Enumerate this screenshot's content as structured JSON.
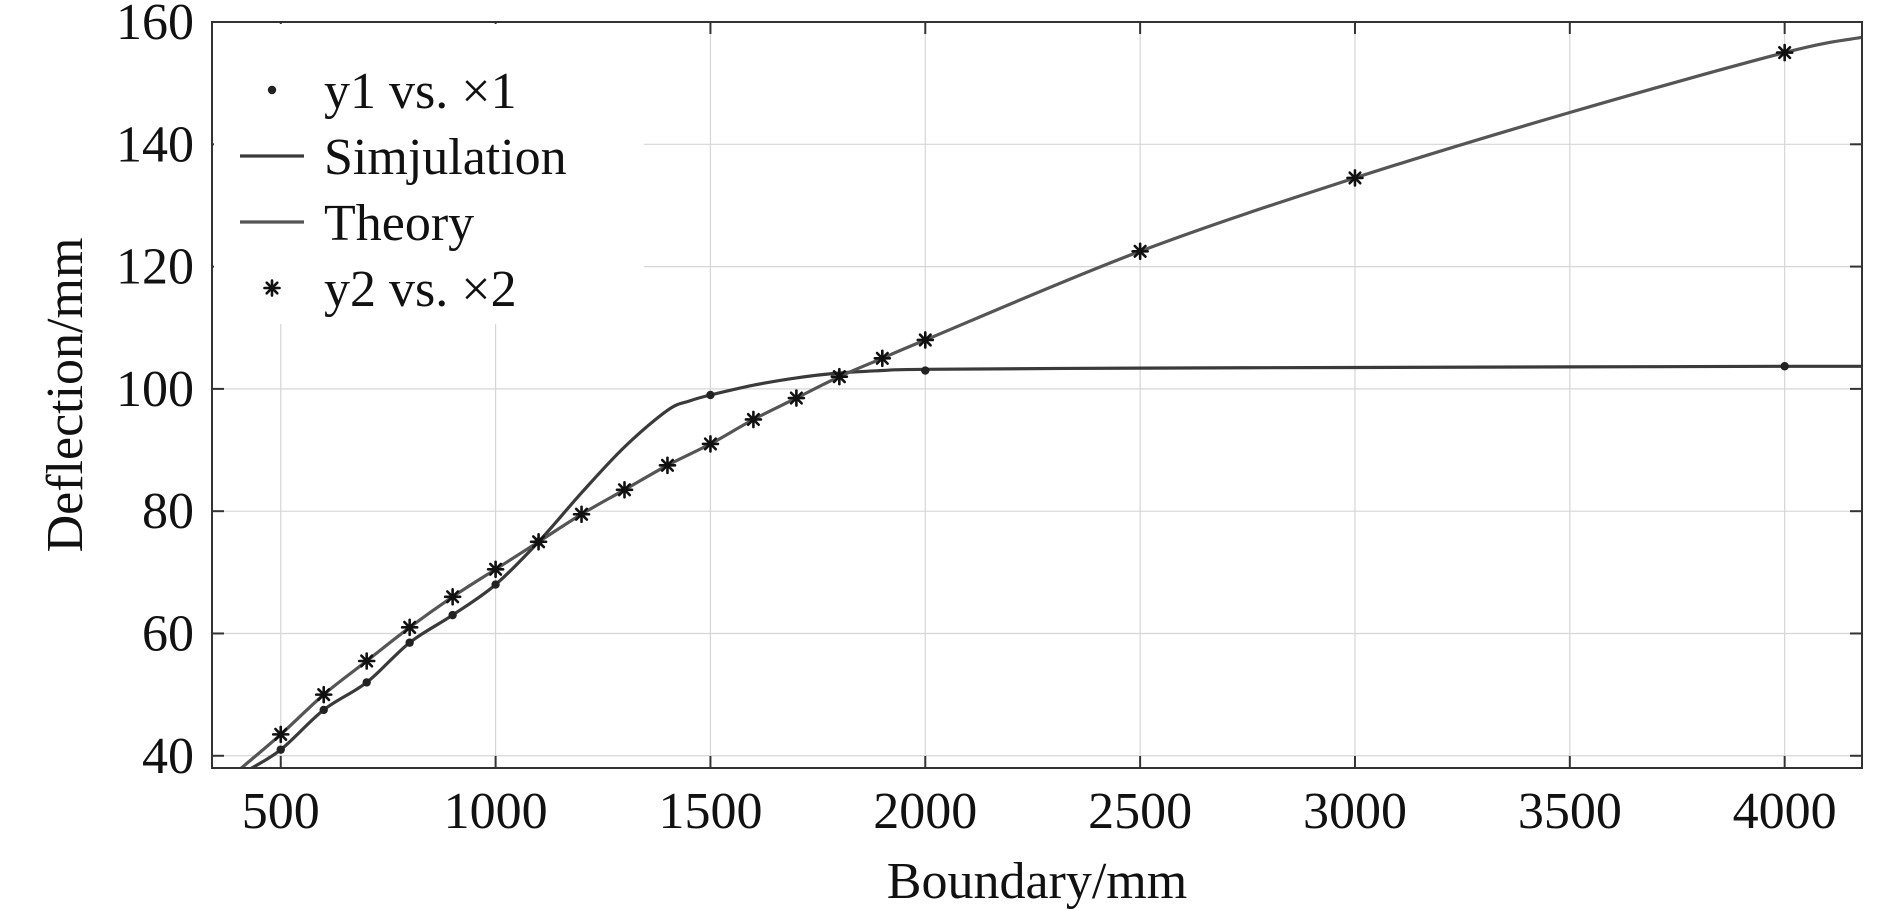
{
  "chart_data": {
    "type": "line",
    "title": "",
    "xlabel": "Boundary/mm",
    "ylabel": "Deflection/mm",
    "xlim": [
      340,
      4180
    ],
    "ylim": [
      38,
      160
    ],
    "xticks": [
      500,
      1000,
      1500,
      2000,
      2500,
      3000,
      3500,
      4000
    ],
    "yticks": [
      40,
      60,
      80,
      100,
      120,
      140,
      160
    ],
    "grid": true,
    "legend_position": "top-left",
    "series": [
      {
        "name": "y1 vs. ×1",
        "kind": "dot-markers",
        "x": [
          500,
          600,
          700,
          800,
          900,
          1000,
          1100,
          1500,
          2000,
          4000
        ],
        "y": [
          41,
          47.5,
          52,
          58.5,
          63,
          68,
          75,
          99,
          103,
          103.7
        ]
      },
      {
        "name": "Simjulation",
        "kind": "line",
        "x": [
          420,
          500,
          600,
          700,
          800,
          900,
          1000,
          1100,
          1200,
          1300,
          1400,
          1450,
          1500,
          1600,
          1700,
          1800,
          1900,
          2000,
          2500,
          3000,
          3500,
          4000,
          4180
        ],
        "y": [
          37.5,
          41,
          47.5,
          52,
          58.5,
          63,
          68,
          75,
          83,
          90.5,
          96.5,
          98,
          99,
          100.6,
          101.8,
          102.6,
          103,
          103.2,
          103.4,
          103.5,
          103.6,
          103.7,
          103.7
        ]
      },
      {
        "name": "Theory",
        "kind": "line",
        "x": [
          400,
          500,
          600,
          700,
          800,
          900,
          1000,
          1100,
          1200,
          1300,
          1400,
          1500,
          1600,
          1700,
          1800,
          1900,
          2000,
          2500,
          3000,
          3500,
          4000,
          4180
        ],
        "y": [
          37.5,
          43.5,
          50,
          55.5,
          61,
          66,
          70.5,
          75,
          79.5,
          83.5,
          87.5,
          91,
          95,
          98.5,
          102,
          105,
          108,
          122.5,
          134.5,
          145.2,
          155,
          157.5
        ]
      },
      {
        "name": "y2 vs. ×2",
        "kind": "star-markers",
        "x": [
          500,
          600,
          700,
          800,
          900,
          1000,
          1100,
          1200,
          1300,
          1400,
          1500,
          1600,
          1700,
          1800,
          1900,
          2000,
          2500,
          3000,
          4000
        ],
        "y": [
          43.5,
          50,
          55.5,
          61,
          66,
          70.5,
          75,
          79.5,
          83.5,
          87.5,
          91,
          95,
          98.5,
          102,
          105,
          108,
          122.5,
          134.5,
          155
        ]
      }
    ],
    "colors": {
      "y1": "#222222",
      "simulation": "#3a3a3a",
      "theory": "#555555",
      "y2": "#111111"
    }
  }
}
